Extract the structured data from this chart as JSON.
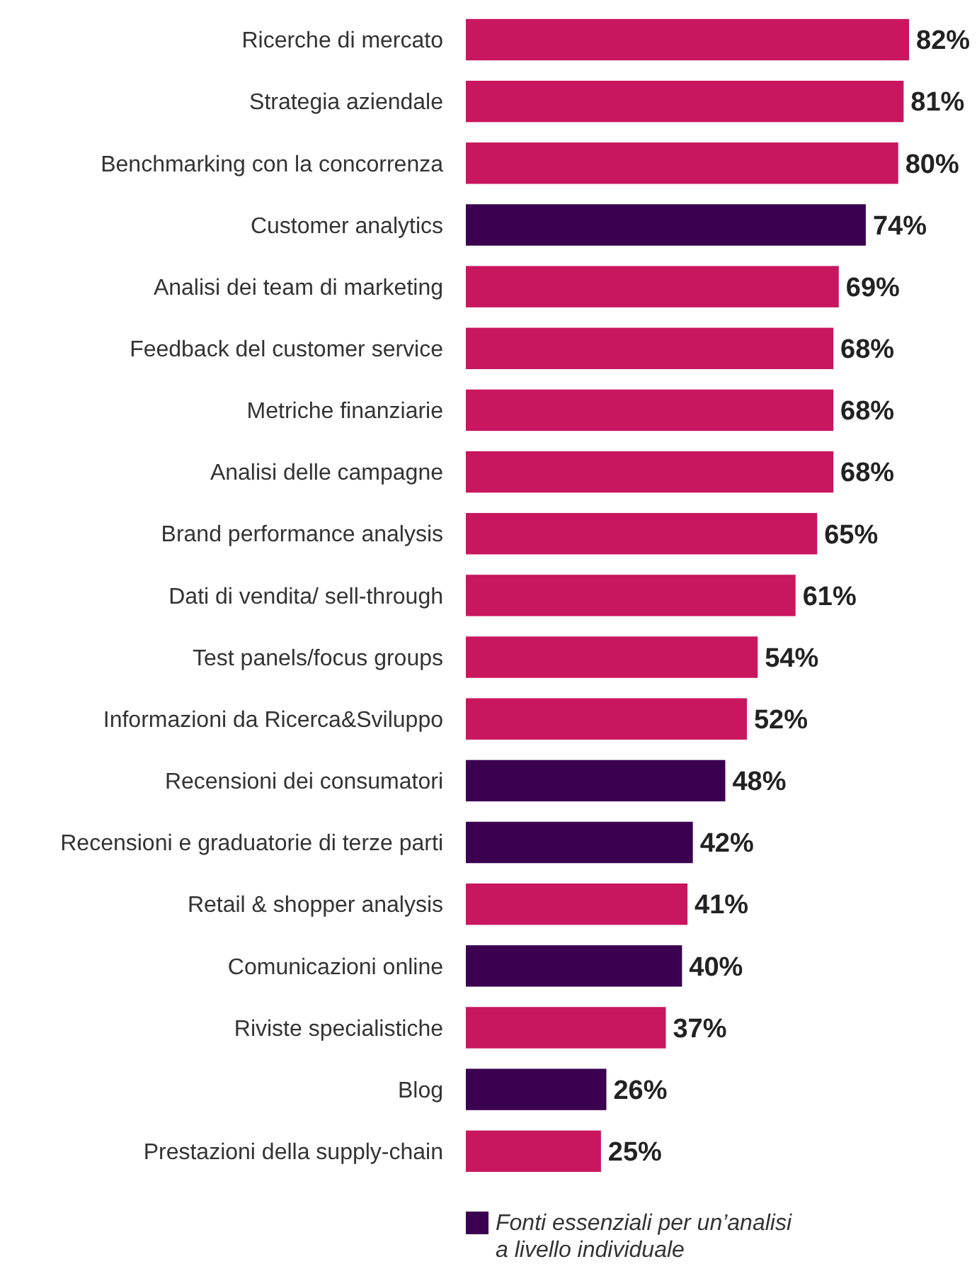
{
  "chart_data": {
    "type": "bar",
    "orientation": "horizontal",
    "legend": "bottom",
    "categories": [
      "Ricerche di mercato",
      "Strategia aziendale",
      "Benchmarking con la concorrenza",
      "Customer analytics",
      "Analisi dei team di marketing",
      "Feedback del customer service",
      "Metriche finanziarie",
      "Analisi delle campagne",
      "Brand performance analysis",
      "Dati di vendita/ sell-through",
      "Test panels/focus groups",
      "Informazioni da Ricerca&Sviluppo",
      "Recensioni dei consumatori",
      "Recensioni e graduatorie di terze parti",
      "Retail & shopper analysis",
      "Comunicazioni online",
      "Riviste specialistiche",
      "Blog",
      "Prestazioni della supply-chain"
    ],
    "series": [
      {
        "color": "#c8165f",
        "values": [
          82,
          81,
          80,
          null,
          69,
          68,
          68,
          68,
          65,
          61,
          54,
          52,
          null,
          null,
          41,
          null,
          37,
          null,
          25
        ],
        "value_labels": [
          "82%",
          "81%",
          "80%",
          null,
          "69%",
          "68%",
          "68%",
          "68%",
          "65%",
          "61%",
          "54%",
          "52%",
          null,
          null,
          "41%",
          null,
          "37%",
          null,
          "25%"
        ]
      },
      {
        "name": "Fonti essenziali per un’analisi a livello individuale",
        "color": "#3b0050",
        "values": [
          null,
          null,
          null,
          74,
          null,
          null,
          null,
          null,
          null,
          null,
          null,
          null,
          48,
          42,
          null,
          40,
          null,
          26,
          null
        ],
        "value_labels": [
          null,
          null,
          null,
          "74%",
          null,
          null,
          null,
          null,
          null,
          null,
          null,
          null,
          "48%",
          "42%",
          null,
          "40%",
          null,
          "26%",
          null
        ]
      }
    ]
  }
}
